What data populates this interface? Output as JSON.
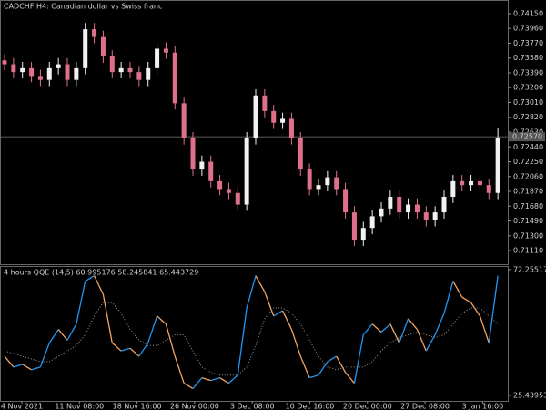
{
  "chart_data": [
    {
      "type": "candlestick",
      "title": "CADCHF,H4:  Canadian dollar vs Swiss franc",
      "up_color": "#f2f2f2",
      "down_color": "#e0708a",
      "ylim": [
        0.70935,
        0.74325
      ],
      "yticks": [
        {
          "value": 0.7415,
          "label": "0.74150"
        },
        {
          "value": 0.7396,
          "label": "0.73960"
        },
        {
          "value": 0.7377,
          "label": "0.73770"
        },
        {
          "value": 0.7358,
          "label": "0.73580"
        },
        {
          "value": 0.7339,
          "label": "0.73390"
        },
        {
          "value": 0.732,
          "label": "0.73200"
        },
        {
          "value": 0.7301,
          "label": "0.73010"
        },
        {
          "value": 0.7282,
          "label": "0.72820"
        },
        {
          "value": 0.7263,
          "label": "0.72630"
        },
        {
          "value": 0.7244,
          "label": "0.72440"
        },
        {
          "value": 0.7225,
          "label": "0.72250"
        },
        {
          "value": 0.7206,
          "label": "0.72060"
        },
        {
          "value": 0.7187,
          "label": "0.71870"
        },
        {
          "value": 0.7168,
          "label": "0.71680"
        },
        {
          "value": 0.7149,
          "label": "0.71490"
        },
        {
          "value": 0.713,
          "label": "0.71300"
        },
        {
          "value": 0.7111,
          "label": "0.71110"
        }
      ],
      "current_price": {
        "value": 0.7257,
        "label": "0.72570"
      },
      "open": [
        0.7355,
        0.735,
        0.734,
        0.7345,
        0.7335,
        0.733,
        0.7345,
        0.735,
        0.733,
        0.7345,
        0.7395,
        0.7385,
        0.736,
        0.734,
        0.7345,
        0.734,
        0.733,
        0.7345,
        0.737,
        0.7365,
        0.73,
        0.7255,
        0.7215,
        0.7225,
        0.72,
        0.719,
        0.7185,
        0.717,
        0.7255,
        0.731,
        0.729,
        0.7275,
        0.728,
        0.7255,
        0.7215,
        0.719,
        0.7195,
        0.7205,
        0.719,
        0.716,
        0.7125,
        0.714,
        0.7155,
        0.7165,
        0.718,
        0.716,
        0.717,
        0.716,
        0.715,
        0.716,
        0.718,
        0.72,
        0.7195,
        0.72,
        0.7195,
        0.7185
      ],
      "high": [
        0.7363,
        0.7358,
        0.7353,
        0.7353,
        0.7343,
        0.7353,
        0.7358,
        0.7358,
        0.7353,
        0.7403,
        0.7403,
        0.7393,
        0.7368,
        0.7353,
        0.7353,
        0.7348,
        0.7353,
        0.7378,
        0.7378,
        0.7373,
        0.7308,
        0.7263,
        0.7233,
        0.7233,
        0.7208,
        0.7198,
        0.7193,
        0.7263,
        0.7318,
        0.7318,
        0.7298,
        0.7288,
        0.7288,
        0.7263,
        0.7223,
        0.7203,
        0.7213,
        0.7213,
        0.7198,
        0.7168,
        0.7148,
        0.7163,
        0.7173,
        0.7188,
        0.7188,
        0.7178,
        0.7178,
        0.7168,
        0.7168,
        0.7188,
        0.7208,
        0.7208,
        0.7208,
        0.7208,
        0.7203,
        0.7268
      ],
      "low": [
        0.7342,
        0.7332,
        0.7332,
        0.7327,
        0.7322,
        0.7322,
        0.7337,
        0.7322,
        0.7322,
        0.7337,
        0.7377,
        0.7352,
        0.7332,
        0.7332,
        0.7332,
        0.7322,
        0.7322,
        0.7337,
        0.7357,
        0.7292,
        0.7247,
        0.7207,
        0.7207,
        0.7192,
        0.7182,
        0.7177,
        0.7162,
        0.7162,
        0.7247,
        0.7282,
        0.7267,
        0.7267,
        0.7247,
        0.7207,
        0.7182,
        0.7182,
        0.7187,
        0.7182,
        0.7152,
        0.7117,
        0.7117,
        0.7132,
        0.7147,
        0.7157,
        0.7152,
        0.7152,
        0.7152,
        0.7142,
        0.7142,
        0.7152,
        0.7172,
        0.7187,
        0.7187,
        0.7187,
        0.7177,
        0.7177
      ],
      "close": [
        0.735,
        0.734,
        0.7345,
        0.7335,
        0.733,
        0.7345,
        0.735,
        0.733,
        0.7345,
        0.7395,
        0.7385,
        0.736,
        0.734,
        0.7345,
        0.734,
        0.733,
        0.7345,
        0.737,
        0.7365,
        0.73,
        0.7255,
        0.7215,
        0.7225,
        0.72,
        0.719,
        0.7185,
        0.717,
        0.7255,
        0.731,
        0.729,
        0.7275,
        0.728,
        0.7255,
        0.7215,
        0.719,
        0.7195,
        0.7205,
        0.719,
        0.716,
        0.7125,
        0.714,
        0.7155,
        0.7165,
        0.718,
        0.716,
        0.717,
        0.716,
        0.715,
        0.716,
        0.718,
        0.72,
        0.7195,
        0.72,
        0.7195,
        0.7185,
        0.7255
      ],
      "categories": [
        "4 Nov 2021",
        "11 Nov 08:00",
        "18 Nov 16:00",
        "26 Nov 00:00",
        "3 Dec 08:00",
        "10 Dec 16:00",
        "20 Dec 00:00",
        "27 Dec 08:00",
        "3 Jan 16:00"
      ]
    },
    {
      "type": "line",
      "title": "4 hours QQE (14,5) 60.995176 58.245841 65.443729",
      "ylim": [
        23.4,
        73.61
      ],
      "yticks": [
        {
          "value": 72.25517,
          "label": "72.255170"
        },
        {
          "value": 25.439537,
          "label": "25.439537"
        }
      ],
      "series": [
        {
          "up_color": "#2196f3",
          "down_color": "#f4a460",
          "style": "solid",
          "values": [
            40,
            36,
            37,
            35,
            36,
            45,
            50,
            46,
            52,
            68,
            70,
            63,
            45,
            42,
            43,
            40,
            45,
            55,
            52,
            40,
            30,
            28,
            32,
            31,
            32,
            30,
            33,
            58,
            70,
            64,
            55,
            57,
            50,
            40,
            32,
            33,
            38,
            40,
            34,
            30,
            48,
            52,
            49,
            52,
            45,
            54,
            50,
            42,
            48,
            56,
            68,
            62,
            60,
            55,
            45,
            70
          ]
        },
        {
          "color": "#9a9a9a",
          "style": "dotted",
          "values": [
            42,
            41,
            40,
            39,
            38,
            38,
            40,
            42,
            44,
            48,
            55,
            60,
            60,
            56,
            50,
            46,
            44,
            44,
            46,
            48,
            48,
            42,
            36,
            34,
            33,
            33,
            33,
            36,
            44,
            54,
            58,
            58,
            56,
            52,
            46,
            40,
            36,
            35,
            36,
            36,
            36,
            38,
            42,
            45,
            47,
            48,
            49,
            48,
            47,
            48,
            52,
            56,
            58,
            58,
            55,
            52
          ]
        }
      ]
    }
  ]
}
